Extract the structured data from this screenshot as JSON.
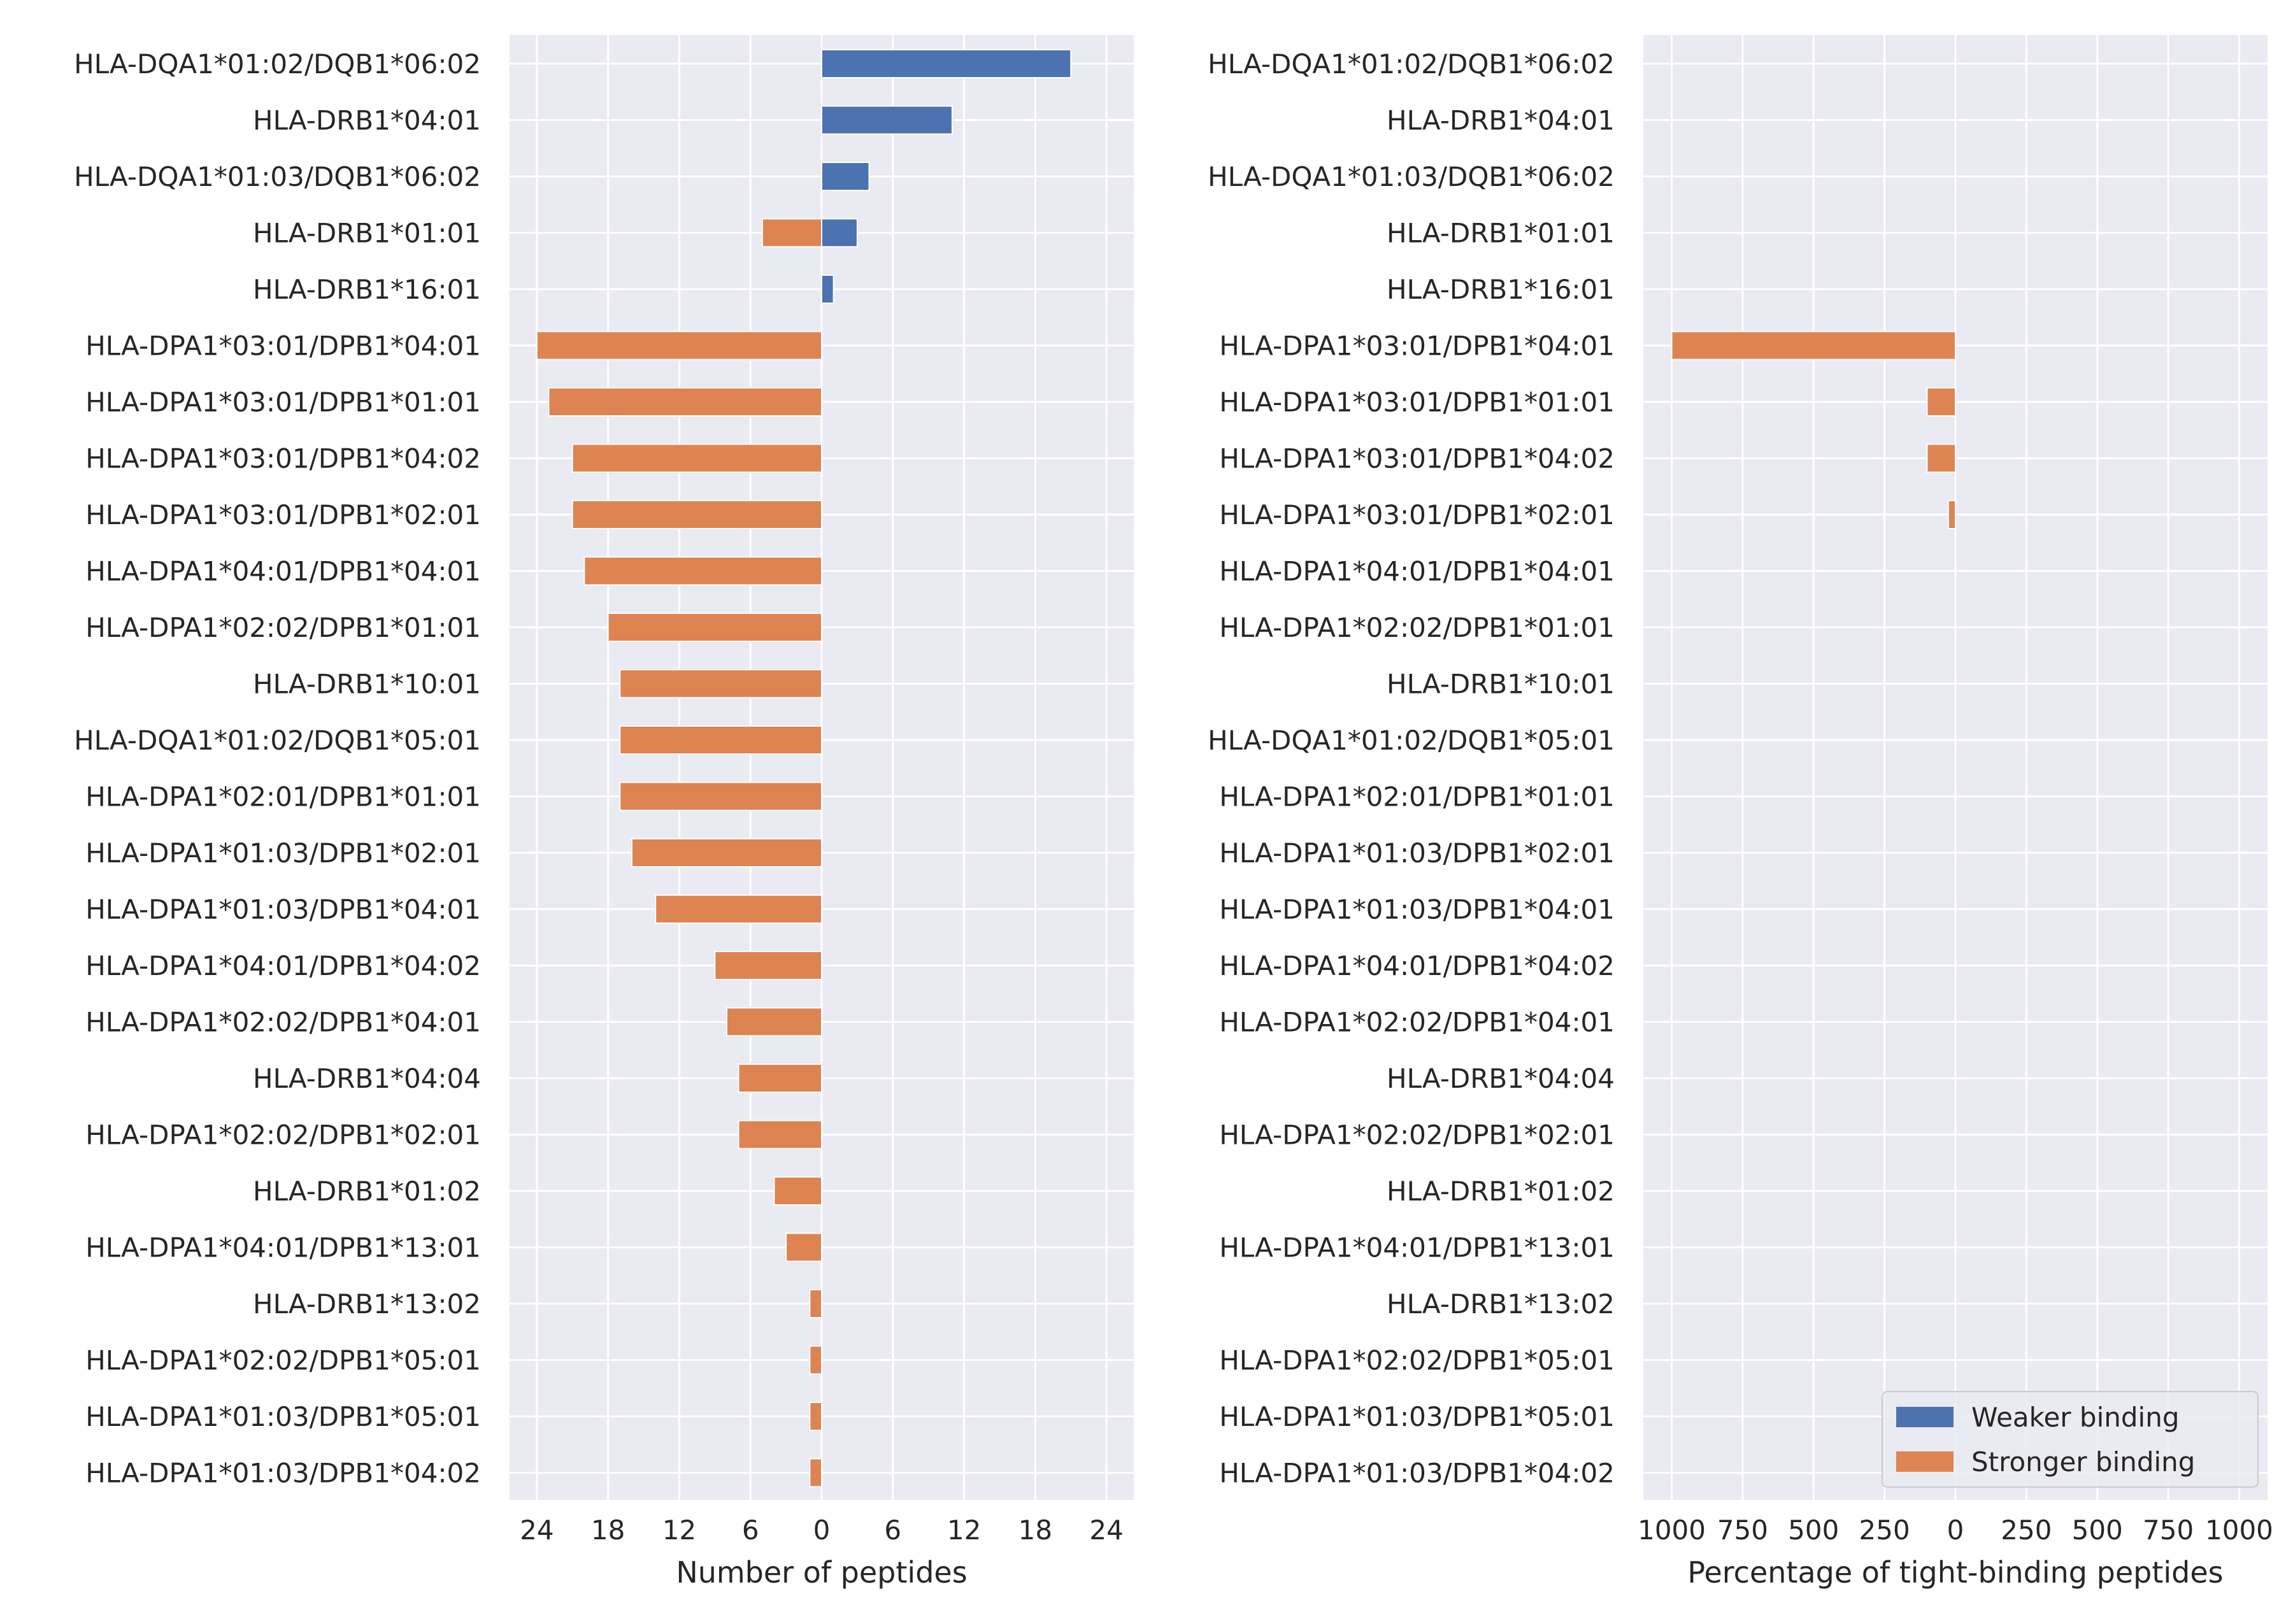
{
  "colors": {
    "weaker": "#4c72b0",
    "stronger": "#dd8452",
    "panel_bg": "#eaeaf2",
    "grid": "#ffffff"
  },
  "chart_data": [
    {
      "type": "bar",
      "orientation": "horizontal",
      "categories": [
        "HLA-DQA1*01:02/DQB1*06:02",
        "HLA-DRB1*04:01",
        "HLA-DQA1*01:03/DQB1*06:02",
        "HLA-DRB1*01:01",
        "HLA-DRB1*16:01",
        "HLA-DPA1*03:01/DPB1*04:01",
        "HLA-DPA1*03:01/DPB1*01:01",
        "HLA-DPA1*03:01/DPB1*04:02",
        "HLA-DPA1*03:01/DPB1*02:01",
        "HLA-DPA1*04:01/DPB1*04:01",
        "HLA-DPA1*02:02/DPB1*01:01",
        "HLA-DRB1*10:01",
        "HLA-DQA1*01:02/DQB1*05:01",
        "HLA-DPA1*02:01/DPB1*01:01",
        "HLA-DPA1*01:03/DPB1*02:01",
        "HLA-DPA1*01:03/DPB1*04:01",
        "HLA-DPA1*04:01/DPB1*04:02",
        "HLA-DPA1*02:02/DPB1*04:01",
        "HLA-DRB1*04:04",
        "HLA-DPA1*02:02/DPB1*02:01",
        "HLA-DRB1*01:02",
        "HLA-DPA1*04:01/DPB1*13:01",
        "HLA-DRB1*13:02",
        "HLA-DPA1*02:02/DPB1*05:01",
        "HLA-DPA1*01:03/DPB1*05:01",
        "HLA-DPA1*01:03/DPB1*04:02"
      ],
      "series": [
        {
          "name": "Weaker binding",
          "values": [
            21,
            11,
            4,
            3,
            1,
            0,
            0,
            0,
            0,
            0,
            0,
            0,
            0,
            0,
            0,
            0,
            0,
            0,
            0,
            0,
            0,
            0,
            0,
            0,
            0,
            0
          ]
        },
        {
          "name": "Stronger binding",
          "values": [
            0,
            0,
            0,
            5,
            0,
            24,
            23,
            21,
            21,
            20,
            18,
            17,
            17,
            17,
            16,
            14,
            9,
            8,
            7,
            7,
            4,
            3,
            1,
            1,
            1,
            1
          ]
        }
      ],
      "xlabel": "Number of peptides",
      "xlim": [
        -26.3,
        26.3
      ],
      "xticks": [
        -24,
        -18,
        -12,
        -6,
        0,
        6,
        12,
        18,
        24
      ],
      "xtick_labels": [
        "24",
        "18",
        "12",
        "6",
        "0",
        "6",
        "12",
        "18",
        "24"
      ],
      "grid": true
    },
    {
      "type": "bar",
      "orientation": "horizontal",
      "categories": [
        "HLA-DQA1*01:02/DQB1*06:02",
        "HLA-DRB1*04:01",
        "HLA-DQA1*01:03/DQB1*06:02",
        "HLA-DRB1*01:01",
        "HLA-DRB1*16:01",
        "HLA-DPA1*03:01/DPB1*04:01",
        "HLA-DPA1*03:01/DPB1*01:01",
        "HLA-DPA1*03:01/DPB1*04:02",
        "HLA-DPA1*03:01/DPB1*02:01",
        "HLA-DPA1*04:01/DPB1*04:01",
        "HLA-DPA1*02:02/DPB1*01:01",
        "HLA-DRB1*10:01",
        "HLA-DQA1*01:02/DQB1*05:01",
        "HLA-DPA1*02:01/DPB1*01:01",
        "HLA-DPA1*01:03/DPB1*02:01",
        "HLA-DPA1*01:03/DPB1*04:01",
        "HLA-DPA1*04:01/DPB1*04:02",
        "HLA-DPA1*02:02/DPB1*04:01",
        "HLA-DRB1*04:04",
        "HLA-DPA1*02:02/DPB1*02:01",
        "HLA-DRB1*01:02",
        "HLA-DPA1*04:01/DPB1*13:01",
        "HLA-DRB1*13:02",
        "HLA-DPA1*02:02/DPB1*05:01",
        "HLA-DPA1*01:03/DPB1*05:01",
        "HLA-DPA1*01:03/DPB1*04:02"
      ],
      "series": [
        {
          "name": "Weaker binding",
          "values": [
            0,
            0,
            0,
            0,
            0,
            0,
            0,
            0,
            0,
            0,
            0,
            0,
            0,
            0,
            0,
            0,
            0,
            0,
            0,
            0,
            0,
            0,
            0,
            0,
            0,
            0
          ]
        },
        {
          "name": "Stronger binding",
          "values": [
            0,
            0,
            0,
            0,
            0,
            1000,
            100,
            100,
            25,
            0,
            0,
            0,
            0,
            0,
            0,
            0,
            0,
            0,
            0,
            0,
            0,
            0,
            0,
            0,
            0,
            0
          ]
        }
      ],
      "xlabel": "Percentage of tight-binding peptides",
      "xlim": [
        -1100,
        1100
      ],
      "xticks": [
        -1000,
        -750,
        -500,
        -250,
        0,
        250,
        500,
        750,
        1000
      ],
      "xtick_labels": [
        "1000",
        "750",
        "500",
        "250",
        "0",
        "250",
        "500",
        "750",
        "1000"
      ],
      "grid": true,
      "legend": {
        "position": "lower-right",
        "entries": [
          "Weaker binding",
          "Stronger binding"
        ]
      }
    }
  ]
}
